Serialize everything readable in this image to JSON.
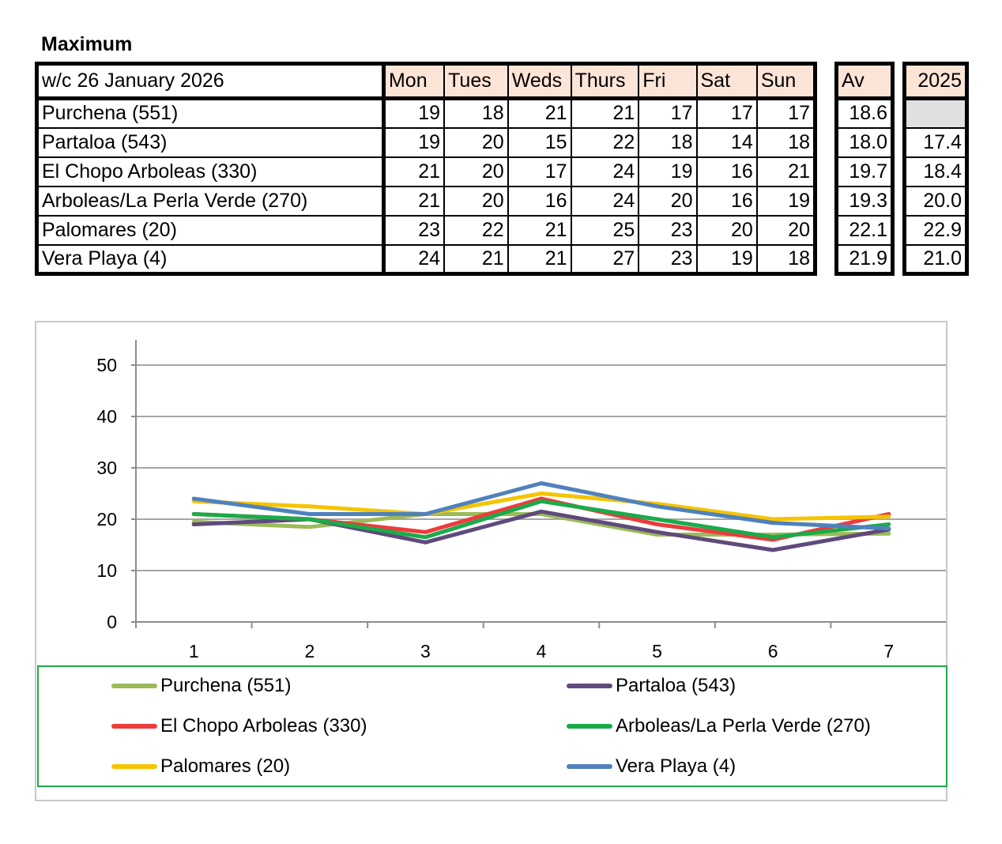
{
  "title": "Maximum",
  "table": {
    "header_label": "w/c 26 January 2026",
    "days": [
      "Mon",
      "Tues",
      "Weds",
      "Thurs",
      "Fri",
      "Sat",
      "Sun"
    ],
    "av_label": "Av",
    "year_label": "2025",
    "rows": [
      {
        "name": "Purchena (551)",
        "values": [
          "19",
          "18",
          "21",
          "21",
          "17",
          "17",
          "17"
        ],
        "av": "18.6",
        "year": ""
      },
      {
        "name": "Partaloa (543)",
        "values": [
          "19",
          "20",
          "15",
          "22",
          "18",
          "14",
          "18"
        ],
        "av": "18.0",
        "year": "17.4"
      },
      {
        "name": "El Chopo  Arboleas (330)",
        "values": [
          "21",
          "20",
          "17",
          "24",
          "19",
          "16",
          "21"
        ],
        "av": "19.7",
        "year": "18.4"
      },
      {
        "name": "Arboleas/La Perla Verde (270)",
        "values": [
          "21",
          "20",
          "16",
          "24",
          "20",
          "16",
          "19"
        ],
        "av": "19.3",
        "year": "20.0"
      },
      {
        "name": "Palomares (20)",
        "values": [
          "23",
          "22",
          "21",
          "25",
          "23",
          "20",
          "20"
        ],
        "av": "22.1",
        "year": "22.9"
      },
      {
        "name": "Vera Playa (4)",
        "values": [
          "24",
          "21",
          "21",
          "27",
          "23",
          "19",
          "18"
        ],
        "av": "21.9",
        "year": "21.0"
      }
    ]
  },
  "chart_data": {
    "type": "line",
    "x": [
      1,
      2,
      3,
      4,
      5,
      6,
      7
    ],
    "ylim": [
      0,
      50
    ],
    "yticks": [
      0,
      10,
      20,
      30,
      40,
      50
    ],
    "grid": true,
    "legend_position": "bottom",
    "series": [
      {
        "name": "Purchena (551)",
        "color": "#9bbb59",
        "values": [
          19.5,
          18.5,
          21,
          21,
          17,
          17,
          17.2
        ]
      },
      {
        "name": "Partaloa (543)",
        "color": "#5f4a7b",
        "values": [
          19,
          20,
          15.5,
          21.5,
          17.5,
          14,
          18
        ]
      },
      {
        "name": "El Chopo  Arboleas (330)",
        "color": "#ee3b3b",
        "values": [
          21,
          20,
          17.5,
          24,
          19,
          16,
          21
        ]
      },
      {
        "name": "Arboleas/La Perla Verde (270)",
        "color": "#1aab4a",
        "values": [
          21,
          20,
          16.5,
          23.5,
          20,
          16.5,
          19
        ]
      },
      {
        "name": "Palomares (20)",
        "color": "#f5c400",
        "values": [
          23.5,
          22.5,
          21,
          25,
          23,
          20,
          20.5
        ]
      },
      {
        "name": "Vera Playa (4)",
        "color": "#4f81bd",
        "values": [
          24,
          21,
          21,
          27,
          22.5,
          19.3,
          18.2
        ]
      }
    ]
  }
}
